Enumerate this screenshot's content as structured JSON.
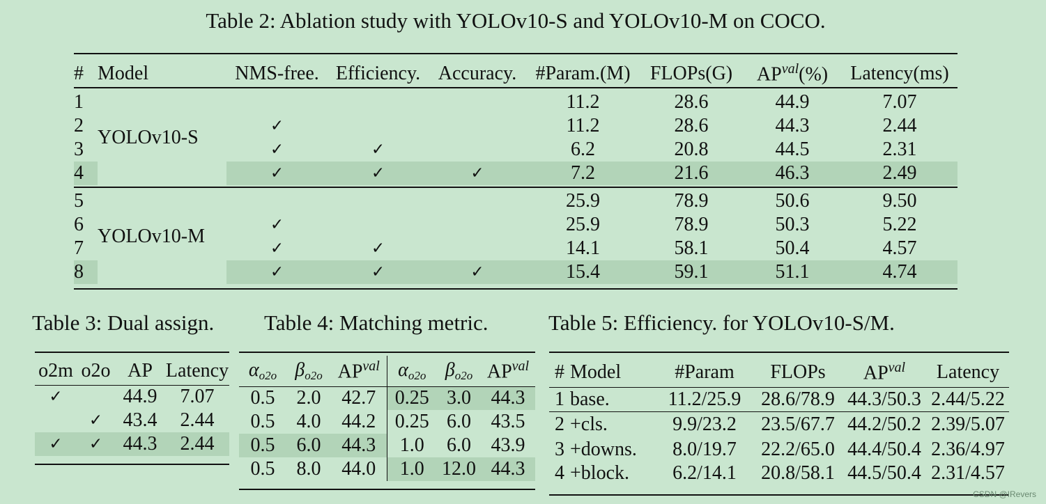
{
  "table2": {
    "caption": "Table 2: Ablation study with YOLOv10-S and YOLOv10-M on COCO.",
    "headers": [
      "#",
      "Model",
      "NMS-free.",
      "Efficiency.",
      "Accuracy.",
      "#Param.(M)",
      "FLOPs(G)",
      "AP",
      "(%)",
      "Latency(ms)"
    ],
    "ap_sup": "val",
    "groups": [
      "YOLOv10-S",
      "YOLOv10-M"
    ],
    "check": "✓",
    "rows": [
      {
        "n": "1",
        "nms": "",
        "eff": "",
        "acc": "",
        "param": "11.2",
        "flops": "28.6",
        "ap": "44.9",
        "lat": "7.07"
      },
      {
        "n": "2",
        "nms": "✓",
        "eff": "",
        "acc": "",
        "param": "11.2",
        "flops": "28.6",
        "ap": "44.3",
        "lat": "2.44"
      },
      {
        "n": "3",
        "nms": "✓",
        "eff": "✓",
        "acc": "",
        "param": "6.2",
        "flops": "20.8",
        "ap": "44.5",
        "lat": "2.31"
      },
      {
        "n": "4",
        "nms": "✓",
        "eff": "✓",
        "acc": "✓",
        "param": "7.2",
        "flops": "21.6",
        "ap": "46.3",
        "lat": "2.49"
      },
      {
        "n": "5",
        "nms": "",
        "eff": "",
        "acc": "",
        "param": "25.9",
        "flops": "78.9",
        "ap": "50.6",
        "lat": "9.50"
      },
      {
        "n": "6",
        "nms": "✓",
        "eff": "",
        "acc": "",
        "param": "25.9",
        "flops": "78.9",
        "ap": "50.3",
        "lat": "5.22"
      },
      {
        "n": "7",
        "nms": "✓",
        "eff": "✓",
        "acc": "",
        "param": "14.1",
        "flops": "58.1",
        "ap": "50.4",
        "lat": "4.57"
      },
      {
        "n": "8",
        "nms": "✓",
        "eff": "✓",
        "acc": "✓",
        "param": "15.4",
        "flops": "59.1",
        "ap": "51.1",
        "lat": "4.74"
      }
    ]
  },
  "table3": {
    "caption": "Table 3: Dual assign.",
    "headers": [
      "o2m",
      "o2o",
      "AP",
      "Latency"
    ],
    "rows": [
      {
        "o2m": "✓",
        "o2o": "",
        "ap": "44.9",
        "lat": "7.07"
      },
      {
        "o2m": "",
        "o2o": "✓",
        "ap": "43.4",
        "lat": "2.44"
      },
      {
        "o2m": "✓",
        "o2o": "✓",
        "ap": "44.3",
        "lat": "2.44"
      }
    ]
  },
  "table4": {
    "caption": "Table 4: Matching metric.",
    "alpha": "α",
    "beta": "β",
    "sub": "o2o",
    "ap": "AP",
    "ap_sup": "val",
    "rows": [
      {
        "a1": "0.5",
        "b1": "2.0",
        "ap1": "42.7",
        "a2": "0.25",
        "b2": "3.0",
        "ap2": "44.3"
      },
      {
        "a1": "0.5",
        "b1": "4.0",
        "ap1": "44.2",
        "a2": "0.25",
        "b2": "6.0",
        "ap2": "43.5"
      },
      {
        "a1": "0.5",
        "b1": "6.0",
        "ap1": "44.3",
        "a2": "1.0",
        "b2": "6.0",
        "ap2": "43.9"
      },
      {
        "a1": "0.5",
        "b1": "8.0",
        "ap1": "44.0",
        "a2": "1.0",
        "b2": "12.0",
        "ap2": "44.3"
      }
    ]
  },
  "table5": {
    "caption": "Table 5: Efficiency. for YOLOv10-S/M.",
    "headers": [
      "#",
      "Model",
      "#Param",
      "FLOPs",
      "AP",
      "Latency"
    ],
    "ap_sup": "val",
    "rows": [
      {
        "n": "1",
        "model": "base.",
        "param": "11.2/25.9",
        "flops": "28.6/78.9",
        "ap": "44.3/50.3",
        "lat": "2.44/5.22"
      },
      {
        "n": "2",
        "model": "+cls.",
        "param": "9.9/23.2",
        "flops": "23.5/67.7",
        "ap": "44.2/50.2",
        "lat": "2.39/5.07"
      },
      {
        "n": "3",
        "model": "+downs.",
        "param": "8.0/19.7",
        "flops": "22.2/65.0",
        "ap": "44.4/50.4",
        "lat": "2.36/4.97"
      },
      {
        "n": "4",
        "model": "+block.",
        "param": "6.2/14.1",
        "flops": "20.8/58.1",
        "ap": "44.5/50.4",
        "lat": "2.31/4.57"
      }
    ]
  },
  "watermark": "CSDN @IRevers"
}
